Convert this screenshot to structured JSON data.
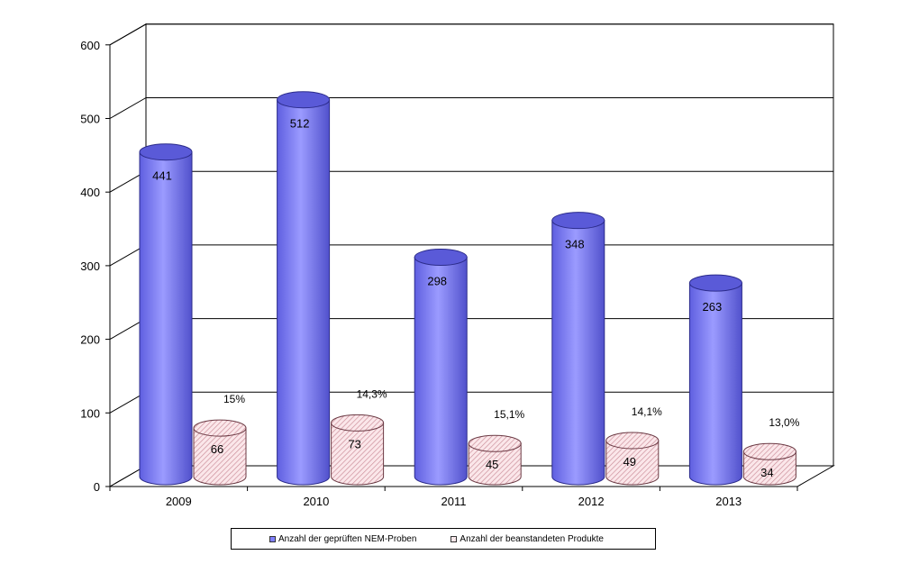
{
  "chart_data": {
    "type": "bar",
    "style": "3d-cylinder",
    "categories": [
      "2009",
      "2010",
      "2011",
      "2012",
      "2013"
    ],
    "ylim": [
      0,
      600
    ],
    "yticks": [
      0,
      100,
      200,
      300,
      400,
      500,
      600
    ],
    "grid": true,
    "legend_position": "bottom",
    "title": "",
    "xlabel": "",
    "ylabel": "",
    "series": [
      {
        "name": "Anzahl der geprüften NEM-Proben",
        "values": [
          441,
          512,
          298,
          348,
          263
        ],
        "color": "#8080ff"
      },
      {
        "name": "Anzahl der beanstandeten Produkte",
        "values": [
          66,
          73,
          45,
          49,
          34
        ],
        "color": "#f4c9cf"
      }
    ],
    "annotations": [
      "15%",
      "14,3%",
      "15,1%",
      "14,1%",
      "13,0%"
    ]
  }
}
